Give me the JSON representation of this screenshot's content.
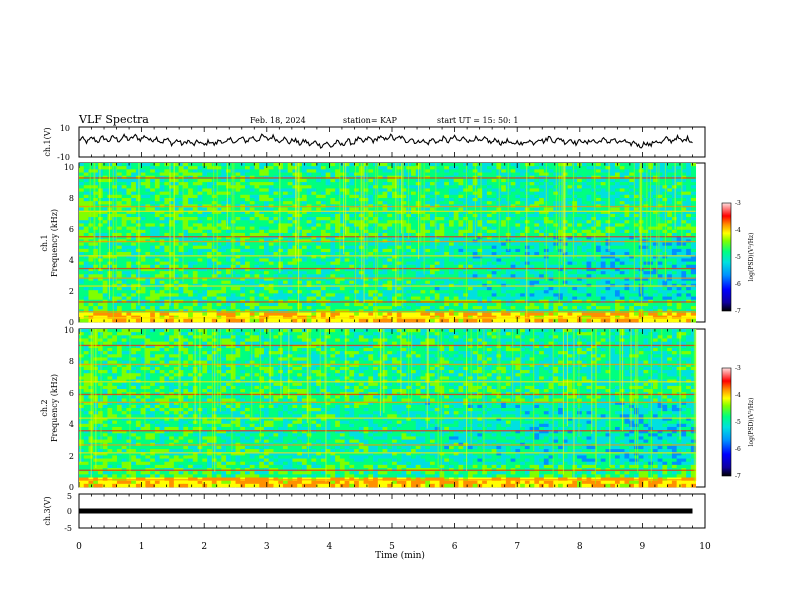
{
  "header": {
    "title": "VLF Spectra",
    "date": "Feb. 18, 2024",
    "station": "station= KAP",
    "start": "start  UT  =   15: 50: 1"
  },
  "colors": {
    "colormap": [
      "#08008a",
      "#0000ff",
      "#0090ff",
      "#00e0e0",
      "#00ff80",
      "#80ff00",
      "#ffff00",
      "#ff9000",
      "#ff0000",
      "#ffd0d0"
    ],
    "waveform": "#000000"
  },
  "chart_data": [
    {
      "id": "ch1-voltage",
      "type": "line",
      "ylabel": "ch.1(V)",
      "xlim": [
        0,
        10
      ],
      "ylim": [
        -10,
        10
      ],
      "yticklabels": [
        "10",
        "-10"
      ],
      "x": [
        0,
        0.5,
        1,
        1.5,
        2,
        2.5,
        3,
        3.5,
        4,
        4.5,
        5,
        5.5,
        6,
        6.5,
        7,
        7.5,
        8,
        8.5,
        9,
        9.5,
        9.8
      ],
      "values": [
        1,
        2,
        3,
        0,
        -1,
        1,
        3,
        0,
        -2,
        1,
        3,
        0,
        2,
        1,
        -1,
        2,
        0,
        1,
        -2,
        2,
        1
      ]
    },
    {
      "id": "ch1-spectrogram",
      "type": "heatmap",
      "ylabel": "ch.1\nFrequency  (kHz)",
      "xlim": [
        0,
        10
      ],
      "ylim": [
        0,
        10
      ],
      "yticklabels": [
        "0",
        "2",
        "4",
        "6",
        "8",
        "10"
      ],
      "colorbar": {
        "label": "log(PSD)(V²/Hz)",
        "range": [
          -7,
          -3
        ],
        "ticklabels": [
          "-3",
          "-4",
          "-5",
          "-6",
          "-7"
        ]
      }
    },
    {
      "id": "ch2-spectrogram",
      "type": "heatmap",
      "ylabel": "ch.2\nFrequency  (kHz)",
      "xlim": [
        0,
        10
      ],
      "ylim": [
        0,
        10
      ],
      "yticklabels": [
        "0",
        "2",
        "4",
        "6",
        "8",
        "10"
      ],
      "colorbar": {
        "label": "log(PSD)(V²/Hz)",
        "range": [
          -7,
          -3
        ],
        "ticklabels": [
          "-3",
          "-4",
          "-5",
          "-6",
          "-7"
        ]
      }
    },
    {
      "id": "ch3-voltage",
      "type": "line",
      "ylabel": "ch.3(V)",
      "xlim": [
        0,
        10
      ],
      "ylim": [
        -5,
        5
      ],
      "yticklabels": [
        "5",
        "0",
        "-5"
      ],
      "x": [
        0,
        9.8
      ],
      "values": [
        0,
        0
      ]
    }
  ],
  "xaxis": {
    "label": "Time  (min)",
    "ticklabels": [
      "0",
      "1",
      "2",
      "3",
      "4",
      "5",
      "6",
      "7",
      "8",
      "9",
      "10"
    ]
  }
}
